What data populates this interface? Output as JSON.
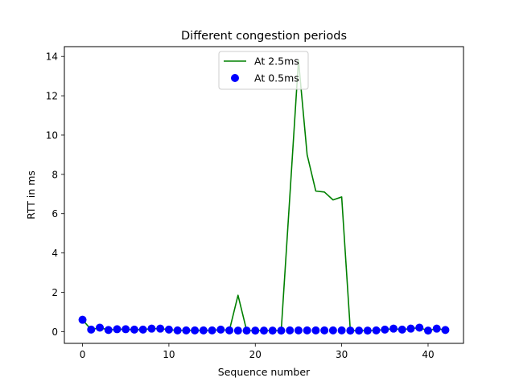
{
  "chart_data": {
    "type": "line",
    "title": "Different congestion periods",
    "xlabel": "Sequence number",
    "ylabel": "RTT in ms",
    "xlim": [
      -2.1,
      44.1
    ],
    "ylim": [
      -0.6,
      14.5
    ],
    "xticks": [
      0,
      10,
      20,
      30,
      40
    ],
    "yticks": [
      0,
      2,
      4,
      6,
      8,
      10,
      12,
      14
    ],
    "grid": false,
    "legend_position": "upper center",
    "series": [
      {
        "name": "At 2.5ms",
        "style": "line",
        "color": "#008000",
        "x": [
          0,
          1,
          2,
          3,
          4,
          5,
          6,
          7,
          8,
          9,
          10,
          11,
          12,
          13,
          14,
          15,
          16,
          17,
          18,
          19,
          20,
          21,
          22,
          23,
          24,
          25,
          26,
          27,
          28,
          29,
          30,
          31,
          32,
          33,
          34,
          35,
          36,
          37,
          38,
          39,
          40,
          41,
          42
        ],
        "y": [
          0.6,
          0.1,
          0.2,
          0.08,
          0.12,
          0.12,
          0.1,
          0.1,
          0.15,
          0.15,
          0.1,
          0.06,
          0.06,
          0.06,
          0.06,
          0.06,
          0.1,
          0.06,
          1.85,
          0.05,
          0.05,
          0.05,
          0.05,
          0.05,
          6.9,
          13.8,
          9.0,
          7.15,
          7.1,
          6.7,
          6.85,
          0.05,
          0.05,
          0.05,
          0.06,
          0.1,
          0.15,
          0.1,
          0.15,
          0.2,
          0.05,
          0.15,
          0.08
        ]
      },
      {
        "name": "At 0.5ms",
        "style": "markers",
        "color": "#0000ff",
        "x": [
          0,
          1,
          2,
          3,
          4,
          5,
          6,
          7,
          8,
          9,
          10,
          11,
          12,
          13,
          14,
          15,
          16,
          17,
          18,
          19,
          20,
          21,
          22,
          23,
          24,
          25,
          26,
          27,
          28,
          29,
          30,
          31,
          32,
          33,
          34,
          35,
          36,
          37,
          38,
          39,
          40,
          41,
          42
        ],
        "y": [
          0.6,
          0.1,
          0.2,
          0.08,
          0.12,
          0.12,
          0.1,
          0.1,
          0.15,
          0.15,
          0.1,
          0.06,
          0.06,
          0.06,
          0.06,
          0.06,
          0.1,
          0.06,
          0.05,
          0.05,
          0.05,
          0.05,
          0.05,
          0.05,
          0.06,
          0.06,
          0.06,
          0.06,
          0.06,
          0.06,
          0.06,
          0.05,
          0.05,
          0.05,
          0.06,
          0.1,
          0.15,
          0.1,
          0.15,
          0.2,
          0.05,
          0.15,
          0.08
        ]
      }
    ]
  }
}
